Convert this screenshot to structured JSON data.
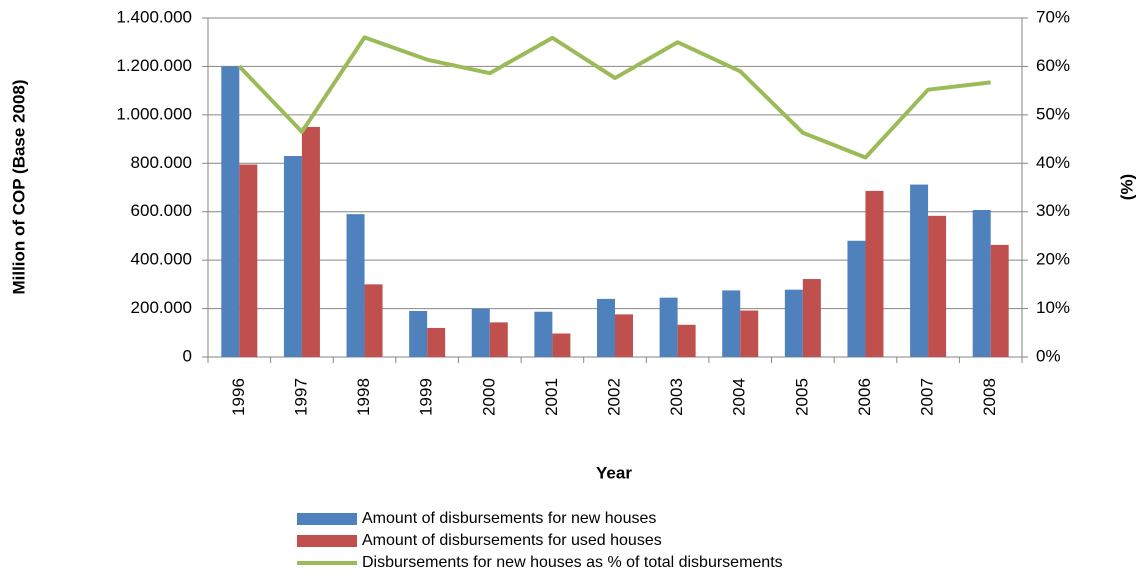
{
  "chart_data": {
    "type": "bar",
    "x_label": "Year",
    "y_label": "Million of COP (Base 2008)",
    "y2_label": "(%)",
    "categories": [
      "1996",
      "1997",
      "1998",
      "1999",
      "2000",
      "2001",
      "2002",
      "2003",
      "2004",
      "2005",
      "2006",
      "2007",
      "2008"
    ],
    "series": [
      {
        "name": "Amount of disbursements for new houses",
        "type": "bar",
        "color": "#4f81bd",
        "values": [
          1200000,
          830000,
          590000,
          190000,
          200000,
          187000,
          240000,
          245000,
          275000,
          278000,
          480000,
          712000,
          607000
        ]
      },
      {
        "name": "Amount of disbursements for used houses",
        "type": "bar",
        "color": "#c0504d",
        "values": [
          795000,
          950000,
          300000,
          120000,
          143000,
          97000,
          176000,
          133000,
          192000,
          322000,
          686000,
          583000,
          463000
        ]
      },
      {
        "name": "Disbursements for new houses as % of total disbursements",
        "type": "line",
        "axis": "y2",
        "color": "#9bbb59",
        "values": [
          60,
          46.5,
          66,
          61.4,
          58.6,
          65.9,
          57.6,
          65,
          59,
          46.3,
          41.2,
          55.2,
          56.7
        ]
      }
    ],
    "ylim": [
      0,
      1400000
    ],
    "yticks": [
      0,
      {
        "value": 200000,
        "label": "200.000"
      },
      {
        "value": 400000,
        "label": "400.000"
      },
      {
        "value": 600000,
        "label": "600.000"
      },
      {
        "value": 800000,
        "label": "800.000"
      },
      {
        "value": 1000000,
        "label": "1.000.000"
      },
      {
        "value": 1200000,
        "label": "1.200.000"
      },
      {
        "value": 1400000,
        "label": "1.400.000"
      }
    ],
    "y2lim": [
      0,
      70
    ],
    "y2ticks": [
      {
        "value": 0,
        "label": "0%"
      },
      {
        "value": 10,
        "label": "10%"
      },
      {
        "value": 20,
        "label": "20%"
      },
      {
        "value": 30,
        "label": "30%"
      },
      {
        "value": 40,
        "label": "40%"
      },
      {
        "value": 50,
        "label": "50%"
      },
      {
        "value": 60,
        "label": "60%"
      },
      {
        "value": 70,
        "label": "70%"
      }
    ],
    "grid": true,
    "legend": "bottom"
  }
}
